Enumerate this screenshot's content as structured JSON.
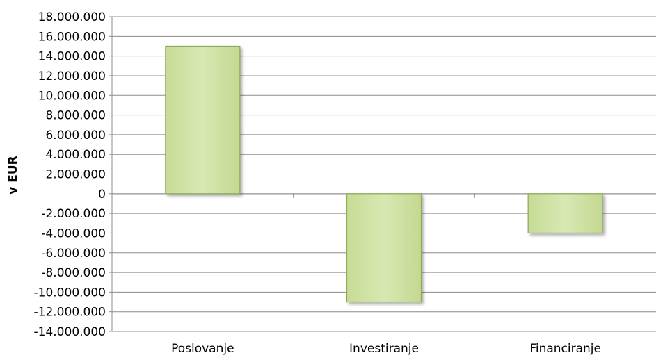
{
  "chart_data": {
    "type": "bar",
    "categories": [
      "Poslovanje",
      "Investiranje",
      "Financiranje"
    ],
    "values": [
      15000000,
      -11000000,
      -4000000
    ],
    "ylabel": "v EUR",
    "xlabel": "",
    "ylim": [
      -14000000,
      18000000
    ],
    "ytick_step": 2000000,
    "ytick_labels": [
      "18.000.000",
      "16.000.000",
      "14.000.000",
      "12.000.000",
      "10.000.000",
      "8.000.000",
      "6.000.000",
      "4.000.000",
      "2.000.000",
      "0",
      "-2.000.000",
      "-4.000.000",
      "-6.000.000",
      "-8.000.000",
      "-10.000.000",
      "-12.000.000",
      "-14.000.000"
    ],
    "grid": true,
    "legend": "none",
    "bar_fill": "#d1e3a8",
    "bar_edge": "#8fa95c",
    "grid_color": "#8c8c8c"
  }
}
